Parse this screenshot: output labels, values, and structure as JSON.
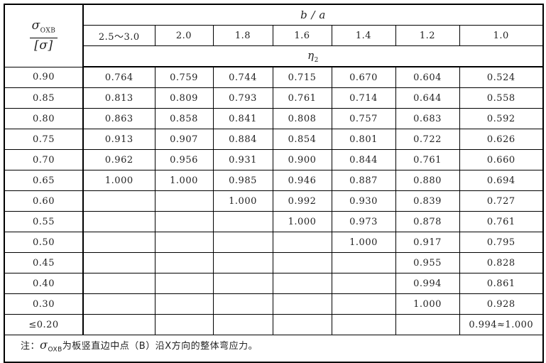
{
  "header": {
    "row_label_num": "σ",
    "row_label_sub": "OXB",
    "row_label_den": "[σ]",
    "top_label": "b / a",
    "columns": [
      "2.5～3.0",
      "2.0",
      "1.8",
      "1.6",
      "1.4",
      "1.2",
      "1.0"
    ],
    "value_label": "η",
    "value_label_sub": "2"
  },
  "rows": [
    {
      "label": "0.90",
      "values": [
        "0.764",
        "0.759",
        "0.744",
        "0.715",
        "0.670",
        "0.604",
        "0.524"
      ]
    },
    {
      "label": "0.85",
      "values": [
        "0.813",
        "0.809",
        "0.793",
        "0.761",
        "0.714",
        "0.644",
        "0.558"
      ]
    },
    {
      "label": "0.80",
      "values": [
        "0.863",
        "0.858",
        "0.841",
        "0.808",
        "0.757",
        "0.683",
        "0.592"
      ]
    },
    {
      "label": "0.75",
      "values": [
        "0.913",
        "0.907",
        "0.884",
        "0.854",
        "0.801",
        "0.722",
        "0.626"
      ]
    },
    {
      "label": "0.70",
      "values": [
        "0.962",
        "0.956",
        "0.931",
        "0.900",
        "0.844",
        "0.761",
        "0.660"
      ]
    },
    {
      "label": "0.65",
      "values": [
        "1.000",
        "1.000",
        "0.985",
        "0.946",
        "0.887",
        "0.880",
        "0.694"
      ]
    },
    {
      "label": "0.60",
      "values": [
        "",
        "",
        "1.000",
        "0.992",
        "0.930",
        "0.839",
        "0.727"
      ]
    },
    {
      "label": "0.55",
      "values": [
        "",
        "",
        "",
        "1.000",
        "0.973",
        "0.878",
        "0.761"
      ]
    },
    {
      "label": "0.50",
      "values": [
        "",
        "",
        "",
        "",
        "1.000",
        "0.917",
        "0.795"
      ]
    },
    {
      "label": "0.45",
      "values": [
        "",
        "",
        "",
        "",
        "",
        "0.955",
        "0.828"
      ]
    },
    {
      "label": "0.40",
      "values": [
        "",
        "",
        "",
        "",
        "",
        "0.994",
        "0.861"
      ]
    },
    {
      "label": "0.30",
      "values": [
        "",
        "",
        "",
        "",
        "",
        "1.000",
        "0.928"
      ]
    },
    {
      "label": "≤0.20",
      "values": [
        "",
        "",
        "",
        "",
        "",
        "",
        "0.994≈1.000"
      ]
    }
  ],
  "note": {
    "prefix": "注：",
    "symbol": "σ",
    "symbol_sub": "OXB",
    "text": "为板竖直边中点（B）沿X方向的整体弯应力。"
  }
}
